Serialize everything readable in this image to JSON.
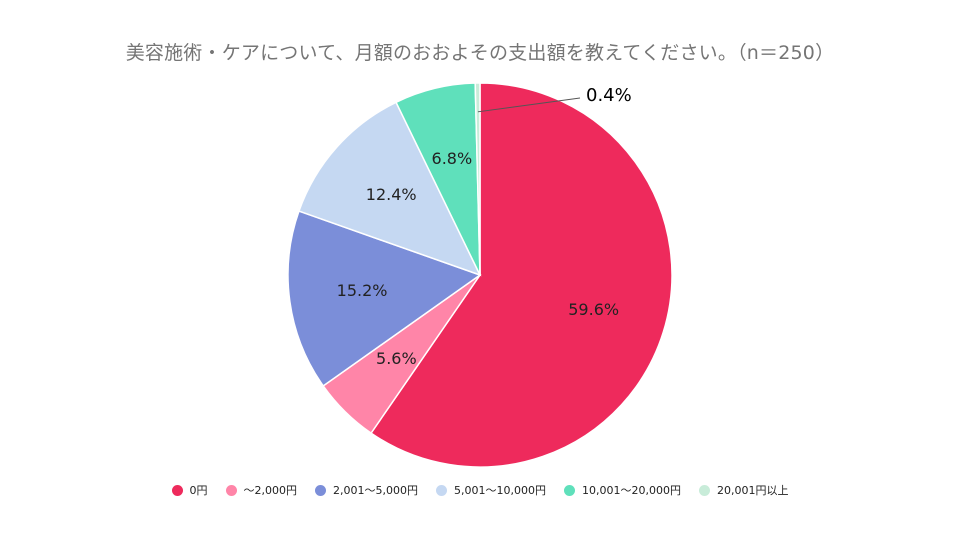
{
  "chart_data": {
    "type": "pie",
    "title": "美容施術・ケアについて、月額のおおよその支出額を教えてください。（n＝250）",
    "legend_position": "bottom",
    "slices": [
      {
        "label": "0円",
        "value": 59.6,
        "display": "59.6%",
        "color": "#ee2a5c",
        "label_color": "#222222"
      },
      {
        "label": "〜2,000円",
        "value": 5.6,
        "display": "5.6%",
        "color": "#ff85a8",
        "label_color": "#222222"
      },
      {
        "label": "2,001〜5,000円",
        "value": 15.2,
        "display": "15.2%",
        "color": "#7b8ed9",
        "label_color": "#222222"
      },
      {
        "label": "5,001〜10,000円",
        "value": 12.4,
        "display": "12.4%",
        "color": "#c5d8f2",
        "label_color": "#222222"
      },
      {
        "label": "10,001〜20,000円",
        "value": 6.8,
        "display": "6.8%",
        "color": "#5fe0bb",
        "label_color": "#222222"
      },
      {
        "label": "20,001円以上",
        "value": 0.4,
        "display": "0.4%",
        "color": "#c8ecd9",
        "label_color": "#000000"
      }
    ]
  }
}
